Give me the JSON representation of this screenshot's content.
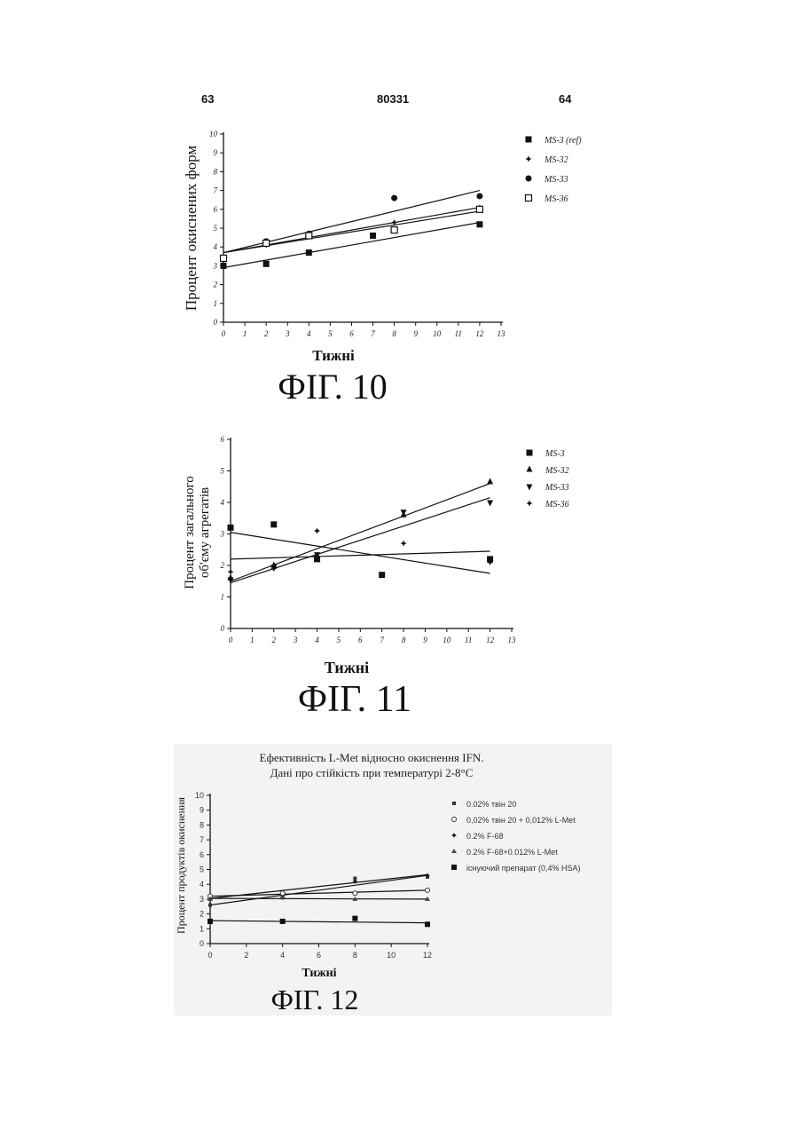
{
  "page_header": {
    "left": "63",
    "center": "80331",
    "right": "64"
  },
  "chart_data": [
    {
      "id": "fig10",
      "type": "scatter",
      "figure_label": "ФІГ. 10",
      "xlabel": "Тижні",
      "ylabel": "Процент окиснених форм",
      "xlim": [
        0,
        13
      ],
      "ylim": [
        0,
        10
      ],
      "xticks": [
        0,
        1,
        2,
        3,
        4,
        5,
        6,
        7,
        8,
        9,
        10,
        11,
        12,
        13
      ],
      "yticks": [
        0,
        1,
        2,
        3,
        4,
        5,
        6,
        7,
        8,
        9,
        10
      ],
      "legend_position": "top-right",
      "series": [
        {
          "name": "MS-3 (ref)",
          "marker": "square-filled",
          "x": [
            0,
            2,
            4,
            7,
            12
          ],
          "y": [
            3.0,
            3.1,
            3.7,
            4.6,
            5.2
          ],
          "fit": [
            [
              0,
              2.9
            ],
            [
              12,
              5.3
            ]
          ]
        },
        {
          "name": "MS-32",
          "marker": "star",
          "x": [
            0,
            2,
            4,
            8,
            12
          ],
          "y": [
            3.4,
            4.1,
            4.6,
            5.3,
            6.1
          ],
          "fit": [
            [
              0,
              3.7
            ],
            [
              12,
              6.1
            ]
          ]
        },
        {
          "name": "MS-33",
          "marker": "circle-filled",
          "x": [
            0,
            2,
            4,
            8,
            12
          ],
          "y": [
            3.4,
            4.3,
            4.7,
            6.6,
            6.7
          ],
          "fit": [
            [
              0,
              3.7
            ],
            [
              12,
              7.0
            ]
          ]
        },
        {
          "name": "MS-36",
          "marker": "square-open",
          "x": [
            0,
            2,
            4,
            8,
            12
          ],
          "y": [
            3.4,
            4.2,
            4.6,
            4.9,
            6.0
          ],
          "fit": [
            [
              0,
              3.7
            ],
            [
              12,
              5.9
            ]
          ]
        }
      ]
    },
    {
      "id": "fig11",
      "type": "scatter",
      "figure_label": "ФІГ. 11",
      "xlabel": "Тижні",
      "ylabel": "Процент загального об'єму агрегатів",
      "xlim": [
        0,
        13
      ],
      "ylim": [
        0,
        6
      ],
      "xticks": [
        0,
        1,
        2,
        3,
        4,
        5,
        6,
        7,
        8,
        9,
        10,
        11,
        12,
        13
      ],
      "yticks": [
        0,
        1,
        2,
        3,
        4,
        5,
        6
      ],
      "legend_position": "top-right",
      "series": [
        {
          "name": "MS-3",
          "marker": "square-filled",
          "x": [
            0,
            2,
            4,
            7,
            12
          ],
          "y": [
            3.2,
            3.3,
            2.2,
            1.7,
            2.2
          ],
          "fit": [
            [
              0,
              3.05
            ],
            [
              12,
              1.75
            ]
          ]
        },
        {
          "name": "MS-32",
          "marker": "triangle-up",
          "x": [
            0,
            2,
            4,
            8,
            12
          ],
          "y": [
            1.6,
            2.0,
            2.3,
            3.6,
            4.65
          ],
          "fit": [
            [
              0,
              1.5
            ],
            [
              12,
              4.6
            ]
          ]
        },
        {
          "name": "MS-33",
          "marker": "triangle-down",
          "x": [
            0,
            2,
            4,
            8,
            12
          ],
          "y": [
            1.55,
            1.95,
            2.35,
            3.7,
            4.0
          ],
          "fit": [
            [
              0,
              1.45
            ],
            [
              12,
              4.15
            ]
          ]
        },
        {
          "name": "MS-36",
          "marker": "star",
          "x": [
            0,
            2,
            4,
            8,
            12
          ],
          "y": [
            1.8,
            1.9,
            3.1,
            2.7,
            2.1
          ],
          "fit": [
            [
              0,
              2.2
            ],
            [
              12,
              2.45
            ]
          ]
        }
      ]
    },
    {
      "id": "fig12",
      "type": "scatter",
      "figure_label": "ФІГ. 12",
      "title": "Ефективність L-Met відносно окиснення IFN.",
      "subtitle": "Дані про стійкість при температурі 2-8°С",
      "xlabel": "Тижні",
      "ylabel": "Процент продуктів окиснення",
      "xlim": [
        0,
        12
      ],
      "ylim": [
        0,
        10
      ],
      "xticks": [
        0,
        2,
        4,
        6,
        8,
        10,
        12
      ],
      "yticks": [
        0,
        1,
        2,
        3,
        4,
        5,
        6,
        7,
        8,
        9,
        10
      ],
      "legend_position": "right",
      "series": [
        {
          "name": "0.02% твін 20",
          "marker": "square-small",
          "x": [
            0,
            4,
            8,
            12
          ],
          "y": [
            2.6,
            3.2,
            4.4,
            4.5
          ],
          "fit": [
            [
              0,
              2.6
            ],
            [
              12,
              4.6
            ]
          ]
        },
        {
          "name": "0,02% твін 20 + 0,012% L-Met",
          "marker": "circle-open",
          "x": [
            0,
            4,
            8,
            12
          ],
          "y": [
            3.2,
            3.4,
            3.4,
            3.6
          ],
          "fit": [
            [
              0,
              3.2
            ],
            [
              12,
              3.6
            ]
          ]
        },
        {
          "name": "0.2% F-68",
          "marker": "star",
          "x": [
            0,
            4,
            8,
            12
          ],
          "y": [
            3.0,
            3.1,
            4.2,
            4.6
          ],
          "fit": [
            [
              0,
              3.05
            ],
            [
              12,
              4.65
            ]
          ]
        },
        {
          "name": "0.2% F-68+0.012% L-Met",
          "marker": "triangle-small",
          "x": [
            0,
            4,
            8,
            12
          ],
          "y": [
            3.0,
            3.1,
            3.0,
            3.0
          ],
          "fit": [
            [
              0,
              3.05
            ],
            [
              12,
              3.0
            ]
          ]
        },
        {
          "name": "існуючий препарат (0,4% HSA)",
          "marker": "square-filled",
          "x": [
            0,
            4,
            8,
            12
          ],
          "y": [
            1.5,
            1.5,
            1.7,
            1.3
          ],
          "fit": [
            [
              0,
              1.55
            ],
            [
              12,
              1.4
            ]
          ]
        }
      ]
    }
  ]
}
